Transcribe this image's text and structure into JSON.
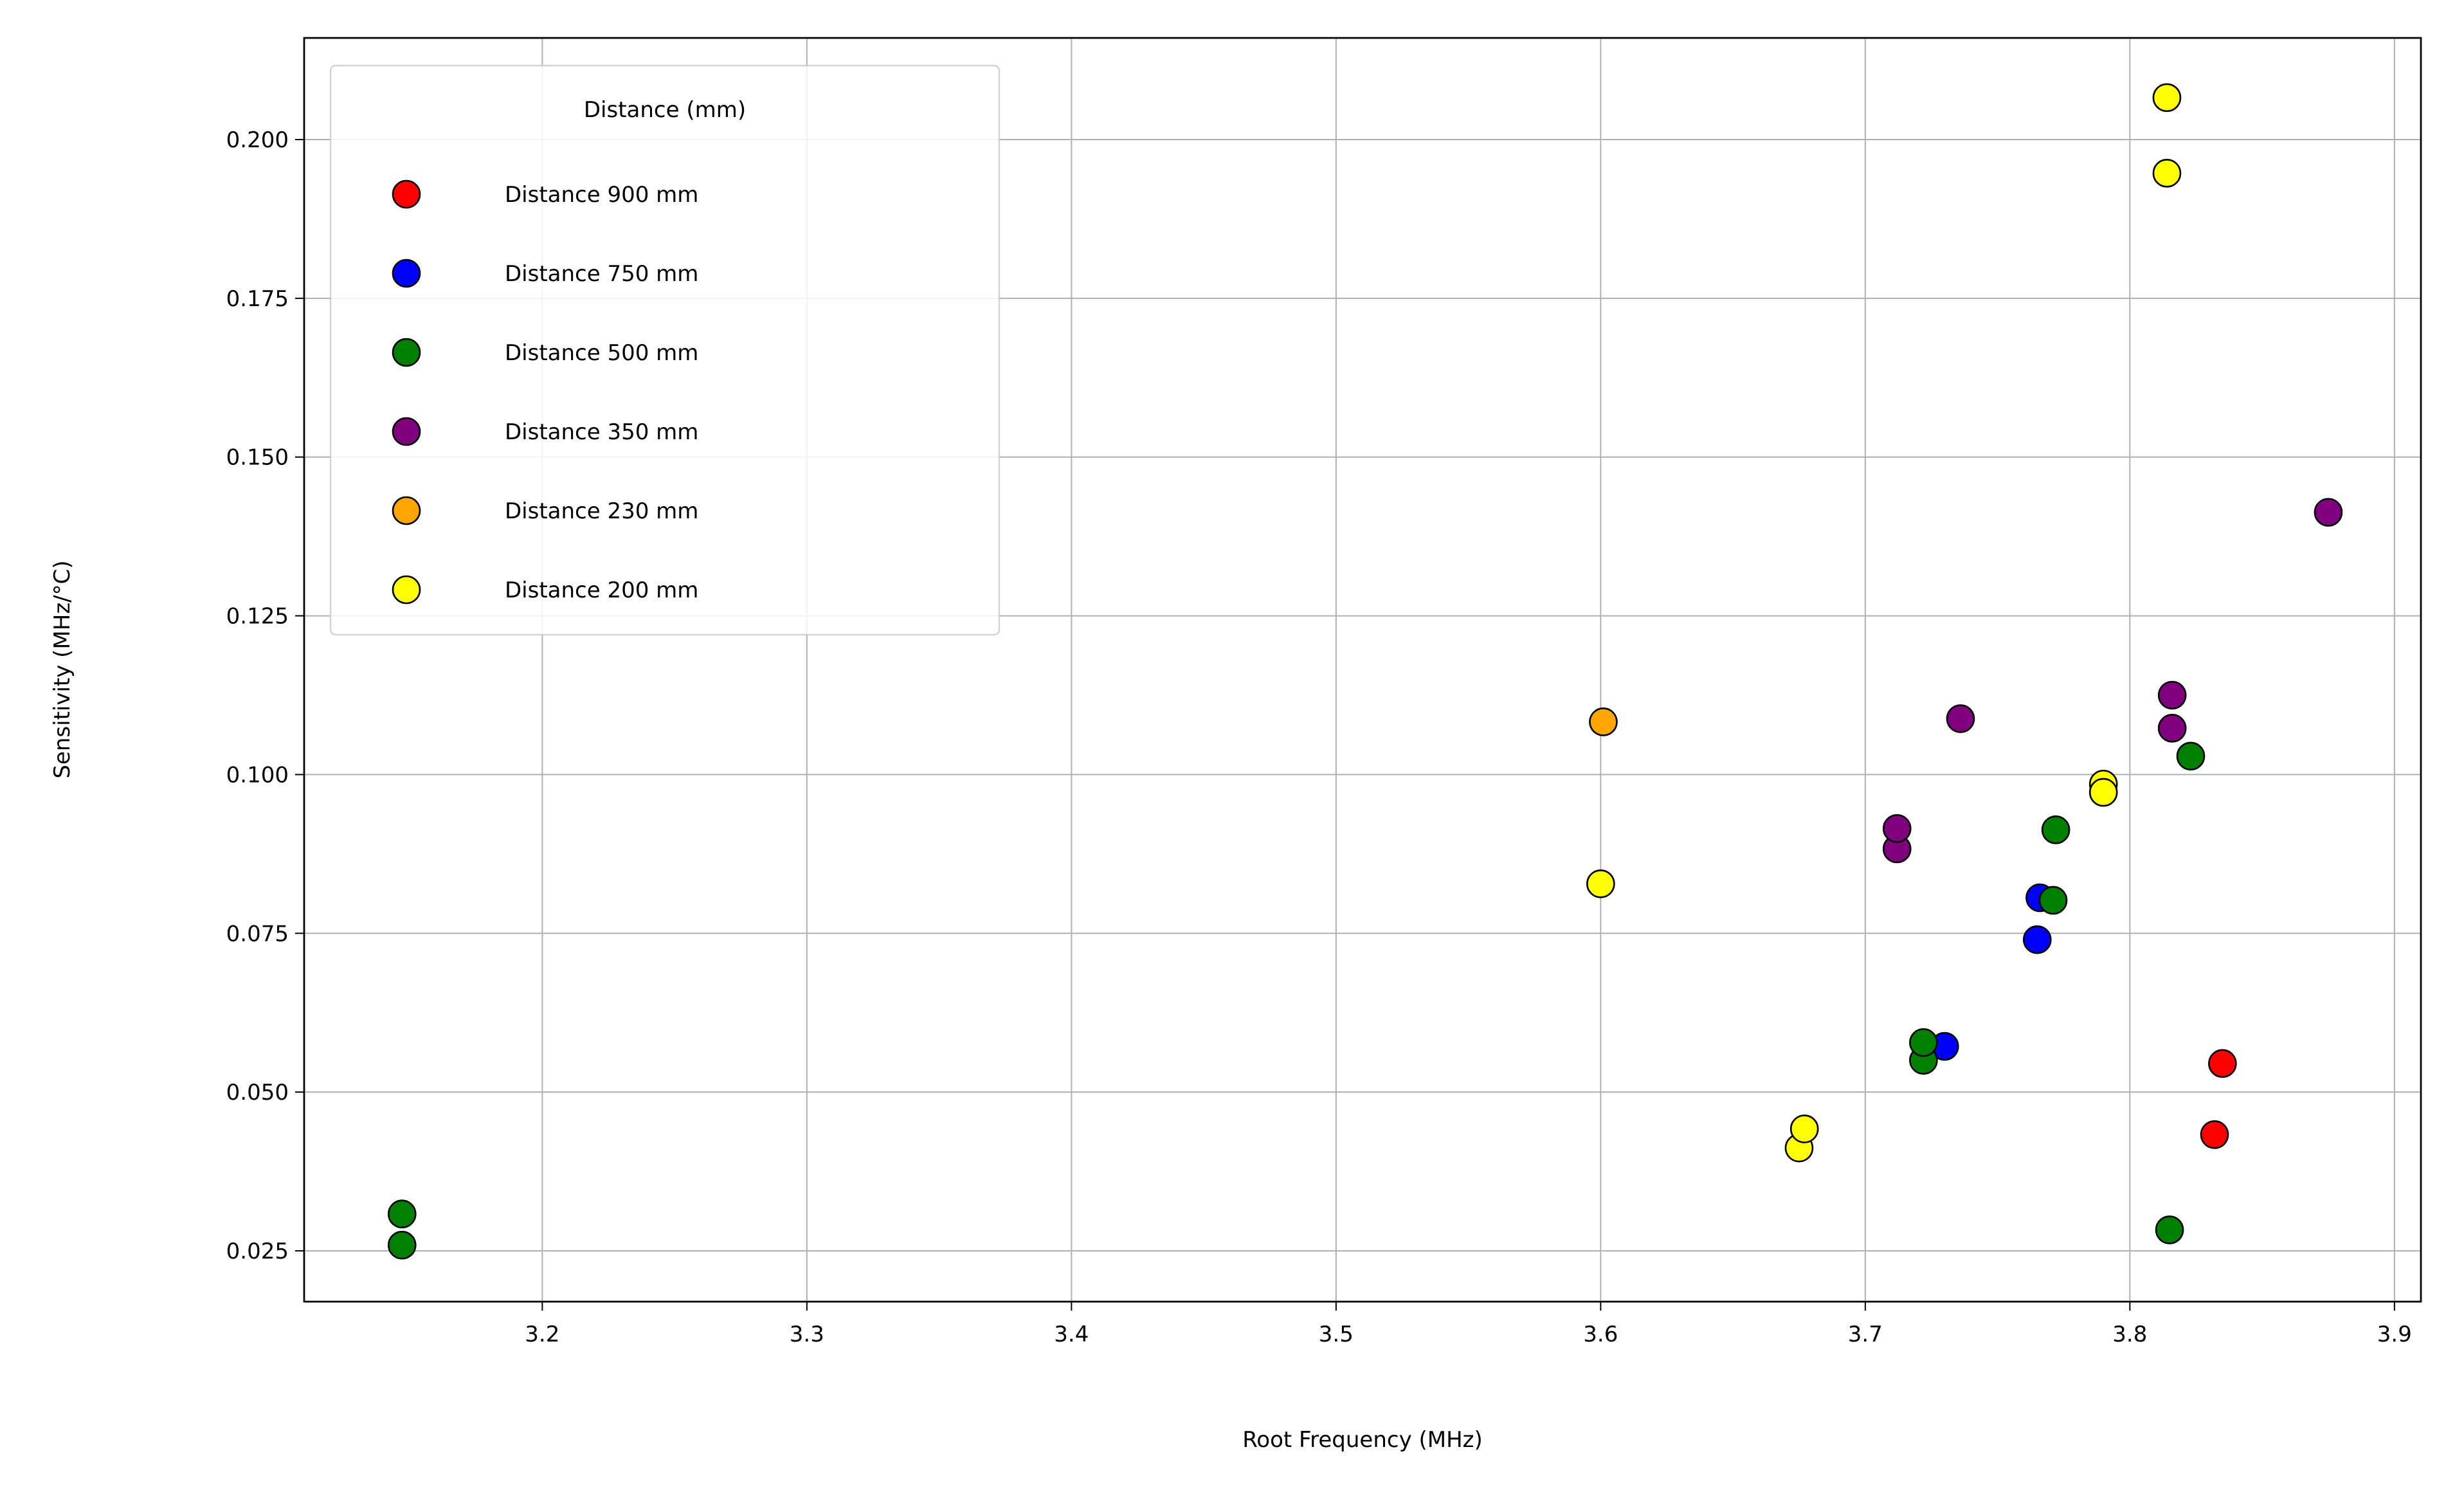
{
  "chart_data": {
    "type": "scatter",
    "title": "",
    "xlabel": "Root Frequency (MHz)",
    "ylabel": "Sensitivity (MHz/°C)",
    "xlim": [
      3.11,
      3.91
    ],
    "ylim": [
      0.017,
      0.216
    ],
    "xticks": [
      3.2,
      3.3,
      3.4,
      3.5,
      3.6,
      3.7,
      3.8,
      3.9
    ],
    "xtick_labels": [
      "3.2",
      "3.3",
      "3.4",
      "3.5",
      "3.6",
      "3.7",
      "3.8",
      "3.9"
    ],
    "yticks": [
      0.025,
      0.05,
      0.075,
      0.1,
      0.125,
      0.15,
      0.175,
      0.2
    ],
    "ytick_labels": [
      "0.025",
      "0.050",
      "0.075",
      "0.100",
      "0.125",
      "0.150",
      "0.175",
      "0.200"
    ],
    "grid": true,
    "legend": {
      "title": "Distance (mm)",
      "placement": "upper-left"
    },
    "series": [
      {
        "name": "Distance 900 mm",
        "color": "#ff0000",
        "points": [
          [
            3.835,
            0.0545
          ],
          [
            3.832,
            0.0433
          ]
        ]
      },
      {
        "name": "Distance 750 mm",
        "color": "#0000ff",
        "points": [
          [
            3.766,
            0.0806
          ],
          [
            3.765,
            0.074
          ],
          [
            3.73,
            0.0572
          ]
        ]
      },
      {
        "name": "Distance 500 mm",
        "color": "#008000",
        "points": [
          [
            3.147,
            0.0308
          ],
          [
            3.147,
            0.0259
          ],
          [
            3.722,
            0.055
          ],
          [
            3.722,
            0.0578
          ],
          [
            3.771,
            0.0802
          ],
          [
            3.772,
            0.0913
          ],
          [
            3.823,
            0.1029
          ],
          [
            3.815,
            0.0283
          ]
        ]
      },
      {
        "name": "Distance 350 mm",
        "color": "#800080",
        "points": [
          [
            3.712,
            0.0883
          ],
          [
            3.712,
            0.0915
          ],
          [
            3.736,
            0.1088
          ],
          [
            3.816,
            0.1125
          ],
          [
            3.816,
            0.1073
          ],
          [
            3.875,
            0.1413
          ]
        ]
      },
      {
        "name": "Distance 230 mm",
        "color": "#ffa500",
        "points": [
          [
            3.601,
            0.1083
          ]
        ]
      },
      {
        "name": "Distance 200 mm",
        "color": "#ffff00",
        "points": [
          [
            3.6,
            0.0828
          ],
          [
            3.675,
            0.0412
          ],
          [
            3.677,
            0.0442
          ],
          [
            3.79,
            0.0985
          ],
          [
            3.79,
            0.0972
          ],
          [
            3.814,
            0.2066
          ],
          [
            3.814,
            0.1947
          ]
        ]
      }
    ]
  }
}
